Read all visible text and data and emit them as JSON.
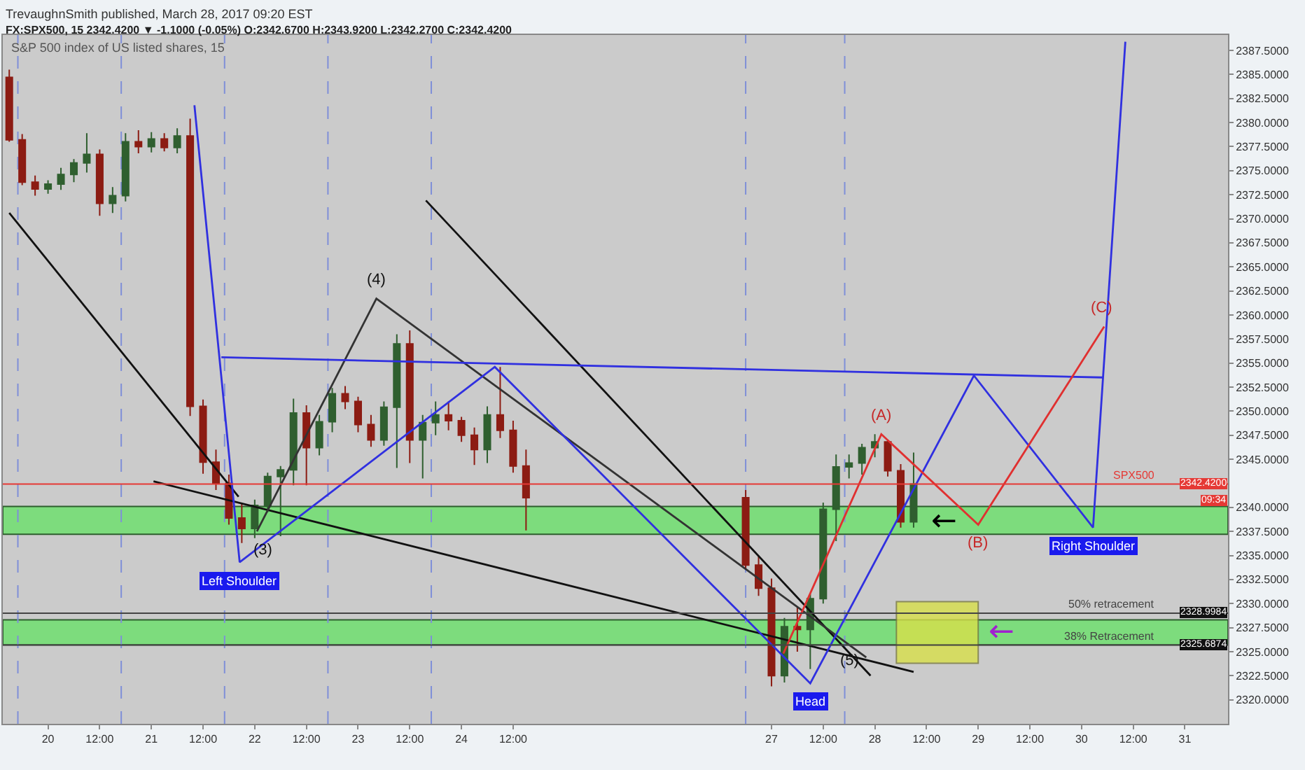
{
  "chart_data": {
    "type": "candlestick",
    "title": "TrevaughnSmith published, March 28, 2017 09:20 EST",
    "subtitle": "FX:SPX500, 15 2342.4200 ▼ -1.1000 (-0.05%) O:2342.6700 H:2343.9200 L:2342.2700 C:2342.4200",
    "xlim": [
      "2017-03-19T13:30",
      "2017-03-31T10:00"
    ],
    "xticks": [
      {
        "value": "2017-03-20T00:00",
        "label": "20"
      },
      {
        "value": "2017-03-20T12:00",
        "label": "12:00"
      },
      {
        "value": "2017-03-21T00:00",
        "label": "21"
      },
      {
        "value": "2017-03-21T12:00",
        "label": "12:00"
      },
      {
        "value": "2017-03-22T00:00",
        "label": "22"
      },
      {
        "value": "2017-03-22T12:00",
        "label": "12:00"
      },
      {
        "value": "2017-03-23T00:00",
        "label": "23"
      },
      {
        "value": "2017-03-23T12:00",
        "label": "12:00"
      },
      {
        "value": "2017-03-24T00:00",
        "label": "24"
      },
      {
        "value": "2017-03-24T12:00",
        "label": "12:00"
      },
      {
        "value": "2017-03-27T00:00",
        "label": "27"
      },
      {
        "value": "2017-03-27T12:00",
        "label": "12:00"
      },
      {
        "value": "2017-03-28T00:00",
        "label": "28"
      },
      {
        "value": "2017-03-28T12:00",
        "label": "12:00"
      },
      {
        "value": "2017-03-29T00:00",
        "label": "29"
      },
      {
        "value": "2017-03-29T12:00",
        "label": "12:00"
      },
      {
        "value": "2017-03-30T00:00",
        "label": "30"
      },
      {
        "value": "2017-03-30T12:00",
        "label": "12:00"
      },
      {
        "value": "2017-03-31T00:00",
        "label": "31"
      }
    ],
    "ylim": [
      2317.5,
      2389.1
    ],
    "yticks": [
      {
        "value": 2320,
        "label": "2320.0000"
      },
      {
        "value": 2322.5,
        "label": "2322.5000"
      },
      {
        "value": 2325,
        "label": "2325.0000"
      },
      {
        "value": 2327.5,
        "label": "2327.5000"
      },
      {
        "value": 2330,
        "label": "2330.0000"
      },
      {
        "value": 2332.5,
        "label": "2332.5000"
      },
      {
        "value": 2335,
        "label": "2335.0000"
      },
      {
        "value": 2337.5,
        "label": "2337.5000"
      },
      {
        "value": 2340,
        "label": "2340.0000"
      },
      {
        "value": 2345,
        "label": "2345.0000"
      },
      {
        "value": 2347.5,
        "label": "2347.5000"
      },
      {
        "value": 2350,
        "label": "2350.0000"
      },
      {
        "value": 2352.5,
        "label": "2352.5000"
      },
      {
        "value": 2355,
        "label": "2355.0000"
      },
      {
        "value": 2357.5,
        "label": "2357.5000"
      },
      {
        "value": 2360,
        "label": "2360.0000"
      },
      {
        "value": 2362.5,
        "label": "2362.5000"
      },
      {
        "value": 2365,
        "label": "2365.0000"
      },
      {
        "value": 2367.5,
        "label": "2367.5000"
      },
      {
        "value": 2370,
        "label": "2370.0000"
      },
      {
        "value": 2372.5,
        "label": "2372.5000"
      },
      {
        "value": 2375,
        "label": "2375.0000"
      },
      {
        "value": 2377.5,
        "label": "2377.5000"
      },
      {
        "value": 2380,
        "label": "2380.0000"
      },
      {
        "value": 2382.5,
        "label": "2382.5000"
      },
      {
        "value": 2385,
        "label": "2385.0000"
      },
      {
        "value": 2387.5,
        "label": "2387.5000"
      }
    ],
    "grid": false,
    "series": [
      {
        "x": [
          "2017-03-19T15:00",
          "2017-03-19T18:00",
          "2017-03-19T21:00",
          "2017-03-20T00:00",
          "2017-03-20T03:00",
          "2017-03-20T06:00",
          "2017-03-20T09:00",
          "2017-03-20T12:00",
          "2017-03-20T15:00",
          "2017-03-20T18:00",
          "2017-03-20T21:00",
          "2017-03-21T00:00",
          "2017-03-21T03:00",
          "2017-03-21T06:00",
          "2017-03-21T09:00",
          "2017-03-21T12:00",
          "2017-03-21T15:00",
          "2017-03-21T18:00",
          "2017-03-21T21:00",
          "2017-03-22T00:00",
          "2017-03-22T03:00",
          "2017-03-22T06:00",
          "2017-03-22T09:00",
          "2017-03-22T12:00",
          "2017-03-22T15:00",
          "2017-03-22T18:00",
          "2017-03-22T21:00",
          "2017-03-23T00:00",
          "2017-03-23T03:00",
          "2017-03-23T06:00",
          "2017-03-23T09:00",
          "2017-03-23T12:00",
          "2017-03-23T15:00",
          "2017-03-23T18:00",
          "2017-03-23T21:00",
          "2017-03-24T00:00",
          "2017-03-24T03:00",
          "2017-03-24T06:00",
          "2017-03-24T09:00",
          "2017-03-24T12:00",
          "2017-03-24T15:00",
          "2017-03-26T18:00",
          "2017-03-26T21:00",
          "2017-03-27T00:00",
          "2017-03-27T03:00",
          "2017-03-27T06:00",
          "2017-03-27T09:00",
          "2017-03-27T12:00",
          "2017-03-27T15:00",
          "2017-03-27T18:00",
          "2017-03-27T21:00",
          "2017-03-28T00:00",
          "2017-03-28T03:00",
          "2017-03-28T06:00",
          "2017-03-28T09:00"
        ],
        "ohlc": [
          [
            2384.7,
            2385.5,
            2378.0,
            2378.2
          ],
          [
            2378.2,
            2378.8,
            2373.5,
            2373.8
          ],
          [
            2373.8,
            2374.5,
            2372.4,
            2373.1
          ],
          [
            2373.1,
            2374.0,
            2372.6,
            2373.6
          ],
          [
            2373.6,
            2375.3,
            2373.0,
            2374.6
          ],
          [
            2374.6,
            2376.2,
            2373.8,
            2375.8
          ],
          [
            2375.8,
            2378.9,
            2374.8,
            2376.7
          ],
          [
            2376.7,
            2377.2,
            2370.3,
            2371.6
          ],
          [
            2371.6,
            2373.3,
            2370.6,
            2372.4
          ],
          [
            2372.4,
            2378.9,
            2371.8,
            2378.0
          ],
          [
            2378.0,
            2379.2,
            2376.8,
            2377.5
          ],
          [
            2377.5,
            2379.0,
            2376.9,
            2378.3
          ],
          [
            2378.3,
            2378.9,
            2377.0,
            2377.4
          ],
          [
            2377.4,
            2379.4,
            2376.8,
            2378.6
          ],
          [
            2378.6,
            2380.4,
            2349.5,
            2350.5
          ],
          [
            2350.5,
            2351.2,
            2343.5,
            2344.7
          ],
          [
            2344.7,
            2346.0,
            2341.8,
            2342.5
          ],
          [
            2342.5,
            2343.4,
            2338.2,
            2338.9
          ],
          [
            2338.9,
            2340.4,
            2336.3,
            2337.8
          ],
          [
            2337.8,
            2340.8,
            2336.8,
            2340.2
          ],
          [
            2340.2,
            2343.6,
            2339.5,
            2343.2
          ],
          [
            2343.2,
            2344.3,
            2337.0,
            2343.9
          ],
          [
            2343.9,
            2351.3,
            2342.3,
            2349.8
          ],
          [
            2349.8,
            2350.6,
            2342.3,
            2346.2
          ],
          [
            2346.2,
            2349.6,
            2345.4,
            2348.9
          ],
          [
            2348.9,
            2352.4,
            2347.8,
            2351.8
          ],
          [
            2351.8,
            2352.6,
            2350.2,
            2351.0
          ],
          [
            2351.0,
            2351.5,
            2347.8,
            2348.6
          ],
          [
            2348.6,
            2349.6,
            2346.3,
            2347.0
          ],
          [
            2347.0,
            2351.0,
            2346.4,
            2350.4
          ],
          [
            2350.4,
            2358.0,
            2344.1,
            2357.0
          ],
          [
            2357.0,
            2358.4,
            2344.6,
            2347.0
          ],
          [
            2347.0,
            2349.6,
            2343.0,
            2348.8
          ],
          [
            2348.8,
            2351.0,
            2347.5,
            2349.6
          ],
          [
            2349.6,
            2351.0,
            2348.0,
            2349.0
          ],
          [
            2349.0,
            2349.4,
            2346.8,
            2347.5
          ],
          [
            2347.5,
            2348.3,
            2344.4,
            2346.0
          ],
          [
            2346.0,
            2350.5,
            2344.6,
            2349.6
          ],
          [
            2349.6,
            2354.6,
            2347.2,
            2348.0
          ],
          [
            2348.0,
            2349.0,
            2343.6,
            2344.3
          ],
          [
            2344.3,
            2346.0,
            2337.6,
            2341.0
          ],
          [
            2341.0,
            2341.8,
            2333.5,
            2334.0
          ],
          [
            2334.0,
            2335.0,
            2330.8,
            2331.6
          ],
          [
            2331.6,
            2332.6,
            2321.4,
            2322.5
          ],
          [
            2322.5,
            2328.5,
            2321.8,
            2327.6
          ],
          [
            2327.6,
            2329.6,
            2325.0,
            2327.3
          ],
          [
            2327.3,
            2331.0,
            2323.2,
            2330.5
          ],
          [
            2330.5,
            2340.5,
            2330.0,
            2339.8
          ],
          [
            2339.8,
            2345.5,
            2336.5,
            2344.2
          ],
          [
            2344.2,
            2345.5,
            2343.0,
            2344.6
          ],
          [
            2344.6,
            2346.6,
            2343.4,
            2346.2
          ],
          [
            2346.2,
            2347.6,
            2345.2,
            2346.8
          ],
          [
            2346.8,
            2347.0,
            2343.2,
            2343.8
          ],
          [
            2343.8,
            2344.5,
            2337.9,
            2338.5
          ],
          [
            2338.5,
            2345.7,
            2337.9,
            2342.42
          ]
        ],
        "colors": [
          "#8c1c13",
          "#8c1c13",
          "#8c1c13",
          "#2f5f2f",
          "#2f5f2f",
          "#2f5f2f",
          "#2f5f2f",
          "#8c1c13",
          "#2f5f2f",
          "#2f5f2f",
          "#8c1c13",
          "#2f5f2f",
          "#8c1c13",
          "#2f5f2f",
          "#8c1c13",
          "#8c1c13",
          "#8c1c13",
          "#8c1c13",
          "#8c1c13",
          "#2f5f2f",
          "#2f5f2f",
          "#2f5f2f",
          "#2f5f2f",
          "#8c1c13",
          "#2f5f2f",
          "#2f5f2f",
          "#8c1c13",
          "#8c1c13",
          "#8c1c13",
          "#2f5f2f",
          "#2f5f2f",
          "#8c1c13",
          "#2f5f2f",
          "#2f5f2f",
          "#8c1c13",
          "#8c1c13",
          "#8c1c13",
          "#2f5f2f",
          "#8c1c13",
          "#8c1c13",
          "#8c1c13",
          "#8c1c13",
          "#8c1c13",
          "#8c1c13",
          "#2f5f2f",
          "#8c1c13",
          "#2f5f2f",
          "#2f5f2f",
          "#2f5f2f",
          "#2f5f2f",
          "#2f5f2f",
          "#2f5f2f",
          "#8c1c13",
          "#8c1c13",
          "#2f5f2f"
        ]
      },
      {
        "type": "line",
        "color": "#111111",
        "x": [
          "2017-03-19T15:00",
          "2017-03-21T20:15"
        ],
        "values": [
          2370.6,
          2341.1
        ]
      },
      {
        "type": "line",
        "color": "#111111",
        "x": [
          "2017-03-21T00:30",
          "2017-03-28T09:00"
        ],
        "values": [
          2342.7,
          2322.9
        ]
      },
      {
        "type": "line",
        "color": "#111111",
        "x": [
          "2017-03-23T15:45",
          "2017-03-27T23:00"
        ],
        "values": [
          2371.9,
          2322.5
        ]
      },
      {
        "type": "line",
        "color": "#333333",
        "x": [
          "2017-03-22T00:30",
          "2017-03-23T04:15",
          "2017-03-27T22:00"
        ],
        "values": [
          2337.5,
          2361.7,
          2324.4
        ]
      },
      {
        "type": "line",
        "color": "#3030e0",
        "x": [
          "2017-03-21T10:00",
          "2017-03-21T20:30",
          "2017-03-24T07:45",
          "2017-03-27T09:00",
          "2017-03-28T23:00",
          "2017-03-30T02:40",
          "2017-03-30T10:10"
        ],
        "values": [
          2381.8,
          2334.3,
          2354.6,
          2321.7,
          2353.7,
          2337.9,
          2388.4
        ]
      },
      {
        "type": "line",
        "color": "#3030e0",
        "x": [
          "2017-03-21T16:15",
          "2017-03-30T05:00"
        ],
        "values": [
          2355.6,
          2353.5
        ]
      },
      {
        "type": "line",
        "color": "#e03030",
        "x": [
          "2017-03-27T02:45",
          "2017-03-28T01:30",
          "2017-03-29T00:00",
          "2017-03-30T05:15"
        ],
        "values": [
          2324.8,
          2347.6,
          2338.2,
          2358.8
        ]
      },
      {
        "type": "bar",
        "color": "#d8e04a",
        "x": [
          "2017-03-28T14:30"
        ],
        "values": [
          6.4
        ],
        "base": [
          2323.8
        ]
      }
    ],
    "bands": [
      {
        "axis": "y",
        "from": 2337.2,
        "to": 2340.1,
        "color": "#7ddc7d"
      },
      {
        "axis": "y",
        "from": 2325.7,
        "to": 2328.3,
        "color": "#7ddc7d"
      }
    ],
    "ref_lines": [
      {
        "axis": "y",
        "value": 2342.42,
        "label": "SPX500",
        "color": "#e53935"
      },
      {
        "axis": "y",
        "value": 2328.9984,
        "label": "50% retracement",
        "color": "#444444"
      },
      {
        "axis": "y",
        "value": 2325.6874,
        "label": "38% Retracement",
        "color": "#444444"
      },
      {
        "axis": "x",
        "value": "2017-03-19T17:00",
        "color": "#7f8fd8",
        "line_style": "dashed"
      },
      {
        "axis": "x",
        "value": "2017-03-20T17:00",
        "color": "#7f8fd8",
        "line_style": "dashed"
      },
      {
        "axis": "x",
        "value": "2017-03-21T17:00",
        "color": "#7f8fd8",
        "line_style": "dashed"
      },
      {
        "axis": "x",
        "value": "2017-03-22T17:00",
        "color": "#7f8fd8",
        "line_style": "dashed"
      },
      {
        "axis": "x",
        "value": "2017-03-23T17:00",
        "color": "#7f8fd8",
        "line_style": "dashed"
      },
      {
        "axis": "x",
        "value": "2017-03-26T18:00",
        "color": "#7f8fd8",
        "line_style": "dashed"
      },
      {
        "axis": "x",
        "value": "2017-03-27T17:00",
        "color": "#7f8fd8",
        "line_style": "dashed"
      }
    ],
    "annotations": [
      "S&P 500 index of US listed shares, 15",
      "09:34",
      "2342.4200",
      "2328.9984",
      "2325.6874",
      {
        "text": "(3)",
        "x": "2017-03-22T00:30",
        "y": 2337.5
      },
      {
        "text": "(4)",
        "x": "2017-03-23T04:15",
        "y": 2361.7
      },
      {
        "text": "(5)",
        "x": "2017-03-27T22:00",
        "y": 2324.4
      },
      {
        "text": "(A)",
        "x": "2017-03-28T01:30",
        "y": 2347.6
      },
      {
        "text": "(B)",
        "x": "2017-03-29T00:00",
        "y": 2338.2
      },
      {
        "text": "(C)",
        "x": "2017-03-30T05:15",
        "y": 2358.8
      },
      {
        "text": "Left Shoulder",
        "x": "2017-03-21T20:30",
        "y": 2334.3
      },
      {
        "text": "Head",
        "x": "2017-03-27T09:00",
        "y": 2321.7
      },
      {
        "text": "Right Shoulder",
        "x": "2017-03-30T02:40",
        "y": 2337.9
      },
      {
        "text": "←",
        "x": "2017-03-28T09:00",
        "y": 2338.5
      },
      {
        "text": "←",
        "x": "2017-03-29T00:00",
        "y": 2327.0
      }
    ]
  }
}
